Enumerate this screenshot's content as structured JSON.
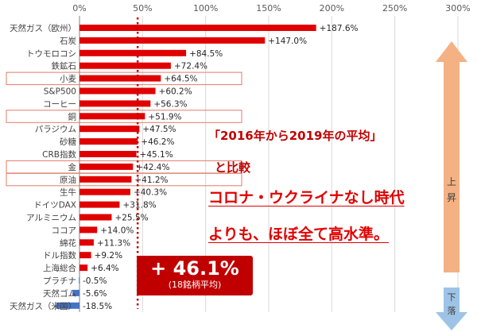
{
  "chart_data": {
    "type": "bar",
    "orientation": "horizontal",
    "categories": [
      "天然ガス（欧州）",
      "石炭",
      "トウモロコシ",
      "鉄鉱石",
      "小麦",
      "S&P500",
      "コーヒー",
      "銅",
      "パラジウム",
      "砂糖",
      "CRB指数",
      "金",
      "原油",
      "生牛",
      "ドイツDAX",
      "アルミニウム",
      "ココア",
      "綿花",
      "ドル指数",
      "上海総合",
      "プラチナ",
      "天然ゴム",
      "天然ガス（米国）"
    ],
    "values": [
      187.6,
      147.0,
      84.5,
      72.4,
      64.5,
      60.2,
      56.3,
      51.9,
      47.5,
      46.2,
      45.1,
      42.4,
      41.2,
      40.3,
      31.8,
      25.5,
      14.0,
      11.3,
      9.2,
      6.4,
      -0.5,
      -5.6,
      -18.5
    ],
    "value_labels": [
      "+187.6%",
      "+147.0%",
      "+84.5%",
      "+72.4%",
      "+64.5%",
      "+60.2%",
      "+56.3%",
      "+51.9%",
      "+47.5%",
      "+46.2%",
      "+45.1%",
      "+42.4%",
      "+41.2%",
      "+40.3%",
      "+31.8%",
      "+25.5%",
      "+14.0%",
      "+11.3%",
      "+9.2%",
      "+6.4%",
      "-0.5%",
      "-5.6%",
      "-18.5%"
    ],
    "xlim": [
      0,
      300
    ],
    "x_ticks": [
      "0%",
      "50%",
      "100%",
      "150%",
      "200%",
      "250%",
      "300%"
    ],
    "highlighted_categories": [
      "小麦",
      "銅",
      "金",
      "原油"
    ],
    "reference_line": {
      "value": 46.1,
      "label": "+ 46.1%",
      "sublabel": "(18銘柄平均)"
    },
    "colors": {
      "positive": "#e00000",
      "negative": "#4472c4",
      "highlight_border": "#e07b6a"
    },
    "grid": true
  },
  "callouts": {
    "line1": "「2016年から2019年の平均」",
    "line2": "と比較",
    "line3": "コロナ・ウクライナなし時代",
    "line4": "よりも、ほぼ全て高水準。"
  },
  "arrows": {
    "up_label": "上\n昇",
    "down_label": "下\n落",
    "up_color": "#f4b183",
    "down_color": "#9dc3e6"
  }
}
